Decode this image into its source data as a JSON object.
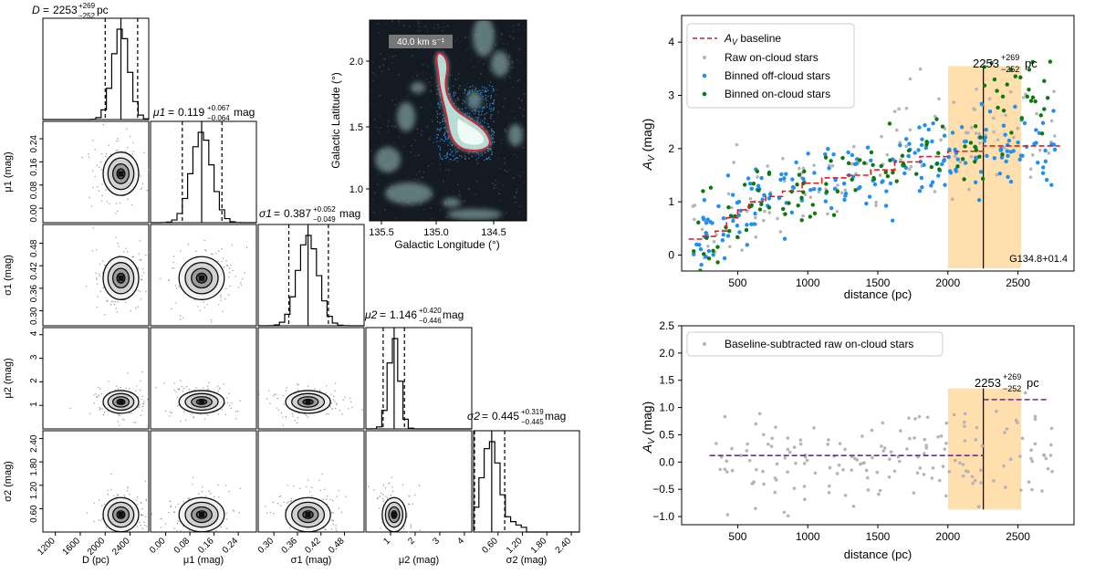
{
  "chart_data": [
    {
      "type": "corner",
      "title": "Corner plot of posterior samples",
      "params": [
        {
          "key": "D",
          "label": "D (pc)",
          "title": {
            "name": "D",
            "value": "2253",
            "plus": "+269",
            "minus": "−252",
            "unit": "pc"
          },
          "range": [
            1000,
            2700
          ],
          "ticks": [
            1200,
            1600,
            2000,
            2400
          ],
          "median": 2253,
          "lo": 2001,
          "hi": 2522,
          "sd": 130
        },
        {
          "key": "mu1",
          "label": "μ1 (mag)",
          "title": {
            "name": "μ1",
            "value": "0.119",
            "plus": "+0.067",
            "minus": "−0.064",
            "unit": "mag"
          },
          "range": [
            -0.05,
            0.3
          ],
          "ticks": [
            0.0,
            0.08,
            0.16,
            0.24
          ],
          "median": 0.119,
          "lo": 0.055,
          "hi": 0.186,
          "sd": 0.034
        },
        {
          "key": "sig1",
          "label": "σ1 (mag)",
          "title": {
            "name": "σ1",
            "value": "0.387",
            "plus": "+0.052",
            "minus": "−0.049",
            "unit": "mag"
          },
          "range": [
            0.26,
            0.53
          ],
          "ticks": [
            0.3,
            0.36,
            0.42,
            0.48
          ],
          "median": 0.387,
          "lo": 0.338,
          "hi": 0.439,
          "sd": 0.026
        },
        {
          "key": "mu2",
          "label": "μ2 (mag)",
          "title": {
            "name": "μ2",
            "value": "1.146",
            "plus": "+0.420",
            "minus": "−0.446",
            "unit": "mag"
          },
          "range": [
            0,
            4.3
          ],
          "ticks": [
            1,
            2,
            3,
            4
          ],
          "median": 1.146,
          "lo": 0.7,
          "hi": 1.566,
          "sd": 0.22
        },
        {
          "key": "sig2",
          "label": "σ2 (mag)",
          "title": {
            "name": "σ2",
            "value": "0.445",
            "plus": "+0.319",
            "minus": "−0.445",
            "unit": "mag"
          },
          "range": [
            0,
            2.6
          ],
          "ticks": [
            0.6,
            1.2,
            1.8,
            2.4
          ],
          "median": 0.445,
          "lo": 0.0,
          "hi": 0.764,
          "sd": 0.2
        }
      ]
    },
    {
      "type": "image",
      "xlabel": "Galactic Longitude (°)",
      "ylabel": "Galactic Latitude (°)",
      "xlim": [
        135.7,
        134.3
      ],
      "ylim": [
        0.75,
        2.35
      ],
      "xticks": [
        "135.5",
        "135.0",
        "134.5"
      ],
      "yticks": [
        "1.0",
        "1.5",
        "2.0"
      ],
      "scalebar": "40.0 km s⁻¹"
    },
    {
      "type": "scatter",
      "xlabel": "distance (pc)",
      "ylabel": "A_V (mag)",
      "xlim": [
        100,
        2900
      ],
      "ylim": [
        -0.3,
        4.5
      ],
      "xticks": [
        500,
        1000,
        1500,
        2000,
        2500
      ],
      "yticks": [
        0,
        1,
        2,
        3,
        4
      ],
      "legend": [
        "A_V baseline",
        "Raw on-cloud stars",
        "Binned off-cloud stars",
        "Binned on-cloud stars"
      ],
      "annotation": "2253",
      "annotation_plus": "+269",
      "annotation_minus": "−252",
      "annotation_unit": "pc",
      "cloud_name": "G134.8+01.4",
      "distance": 2253,
      "range": [
        2001,
        2522
      ],
      "baseline_steps": [
        [
          150,
          0.3
        ],
        [
          250,
          0.35
        ],
        [
          340,
          0.45
        ],
        [
          420,
          0.7
        ],
        [
          500,
          0.85
        ],
        [
          580,
          1.0
        ],
        [
          700,
          1.1
        ],
        [
          820,
          1.2
        ],
        [
          960,
          1.35
        ],
        [
          1100,
          1.45
        ],
        [
          1280,
          1.5
        ],
        [
          1450,
          1.6
        ],
        [
          1620,
          1.75
        ],
        [
          1800,
          1.85
        ],
        [
          2000,
          1.95
        ],
        [
          2253,
          2.05
        ],
        [
          2800,
          2.05
        ]
      ]
    },
    {
      "type": "scatter",
      "xlabel": "distance (pc)",
      "ylabel": "A_V (mag)",
      "xlim": [
        100,
        2900
      ],
      "ylim": [
        -1.15,
        2.5
      ],
      "xticks": [
        500,
        1000,
        1500,
        2000,
        2500
      ],
      "yticks": [
        "−1.0",
        "−0.5",
        "0.0",
        "0.5",
        "1.0",
        "1.5",
        "2.0",
        "2.5"
      ],
      "ytick_values": [
        -1.0,
        -0.5,
        0.0,
        0.5,
        1.0,
        1.5,
        2.0,
        2.5
      ],
      "legend": [
        "Baseline-subtracted raw on-cloud stars"
      ],
      "annotation": "2253",
      "annotation_plus": "+269",
      "annotation_minus": "−252",
      "annotation_unit": "pc",
      "distance": 2253,
      "range": [
        2001,
        2522
      ],
      "near_level": 0.119,
      "far_level": 1.146
    }
  ]
}
